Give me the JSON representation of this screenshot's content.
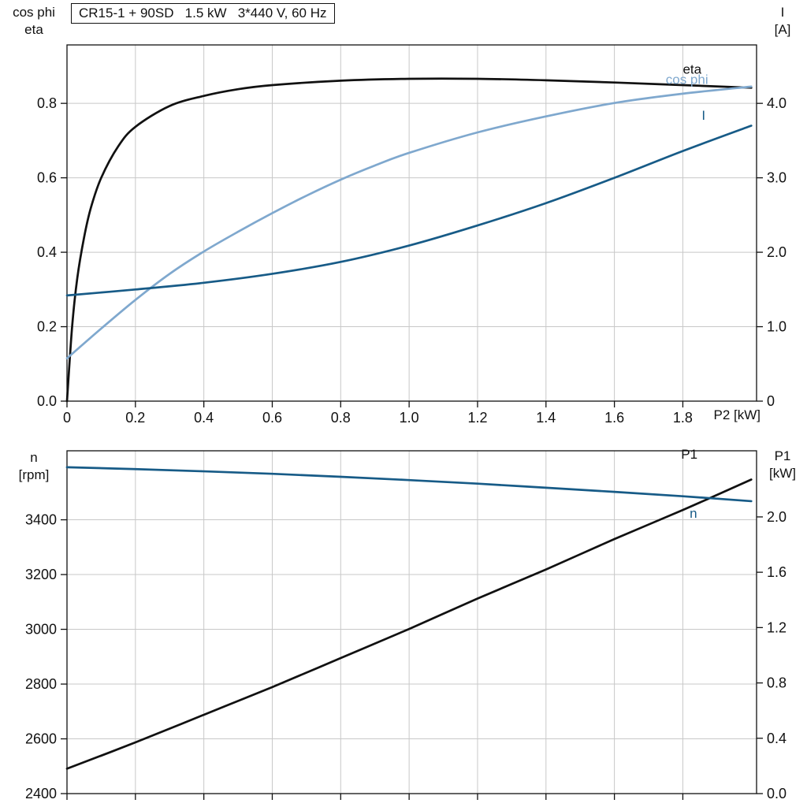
{
  "title_box": "CR15-1 + 90SD   1.5 kW   3*440 V, 60 Hz",
  "colors": {
    "black": "#111111",
    "light_blue": "#7FA8CE",
    "dark_blue": "#175B87",
    "grid": "#C8C8C8",
    "axis": "#111111",
    "text": "#111111"
  },
  "chart_data": [
    {
      "type": "line",
      "id": "top",
      "title": "CR15-1 + 90SD   1.5 kW   3*440 V, 60 Hz",
      "grid": true,
      "legend_position": "none",
      "x_axis": {
        "label": "P2 [kW]",
        "min": 0,
        "max": 2.0155,
        "tick_values": [
          0,
          0.2,
          0.4,
          0.6,
          0.8,
          1.0,
          1.2,
          1.4,
          1.6,
          1.8
        ],
        "tick_labels": [
          "0",
          "0.2",
          "0.4",
          "0.6",
          "0.8",
          "1.0",
          "1.2",
          "1.4",
          "1.6",
          "1.8"
        ]
      },
      "y_left": {
        "label_lines": [
          "cos phi",
          "eta"
        ],
        "min": 0,
        "max": 0.957,
        "tick_values": [
          0,
          0.2,
          0.4,
          0.6,
          0.8
        ],
        "tick_labels": [
          "0.0",
          "0.2",
          "0.4",
          "0.6",
          "0.8"
        ]
      },
      "y_right": {
        "label_lines": [
          "I",
          "[A]"
        ],
        "min": 0,
        "max": 4.785,
        "tick_values": [
          0,
          1.0,
          2.0,
          3.0,
          4.0
        ],
        "tick_labels": [
          "0",
          "1.0",
          "2.0",
          "3.0",
          "4.0"
        ]
      },
      "show_x_tick_labels": true,
      "series": [
        {
          "name": "eta",
          "label": "eta",
          "axis": "left",
          "color": "black",
          "label_at": [
            1.8,
            0.88
          ],
          "x": [
            0,
            0.015,
            0.03,
            0.05,
            0.07,
            0.1,
            0.15,
            0.2,
            0.3,
            0.4,
            0.5,
            0.6,
            0.8,
            1.0,
            1.2,
            1.4,
            1.6,
            1.8,
            2.0
          ],
          "y": [
            0,
            0.2,
            0.33,
            0.44,
            0.52,
            0.6,
            0.685,
            0.737,
            0.793,
            0.82,
            0.838,
            0.849,
            0.861,
            0.866,
            0.866,
            0.862,
            0.856,
            0.849,
            0.842
          ]
        },
        {
          "name": "cos phi",
          "label": "cos phi",
          "axis": "left",
          "color": "light_blue",
          "label_at": [
            1.75,
            0.852
          ],
          "x": [
            0,
            0.1,
            0.2,
            0.3,
            0.4,
            0.5,
            0.6,
            0.7,
            0.8,
            0.9,
            1.0,
            1.2,
            1.4,
            1.6,
            1.8,
            2.0
          ],
          "y": [
            0.115,
            0.195,
            0.272,
            0.342,
            0.402,
            0.455,
            0.505,
            0.552,
            0.595,
            0.633,
            0.667,
            0.722,
            0.765,
            0.801,
            0.826,
            0.845
          ]
        },
        {
          "name": "I",
          "label": "I",
          "axis": "right",
          "color": "dark_blue",
          "label_at": [
            1.855,
            3.78
          ],
          "x": [
            0,
            0.2,
            0.4,
            0.6,
            0.8,
            1.0,
            1.2,
            1.4,
            1.6,
            1.8,
            2.0
          ],
          "y": [
            1.42,
            1.5,
            1.59,
            1.71,
            1.87,
            2.09,
            2.36,
            2.66,
            3.0,
            3.36,
            3.7
          ]
        }
      ]
    },
    {
      "type": "line",
      "id": "bottom",
      "title": "",
      "grid": true,
      "legend_position": "none",
      "x_axis": {
        "label": "",
        "min": 0,
        "max": 2.0155,
        "tick_values": [
          0,
          0.2,
          0.4,
          0.6,
          0.8,
          1.0,
          1.2,
          1.4,
          1.6,
          1.8
        ],
        "tick_labels": [
          "",
          "",
          "",
          "",
          "",
          "",
          "",
          "",
          "",
          ""
        ]
      },
      "y_left": {
        "label_lines": [
          "n",
          "[rpm]"
        ],
        "min": 2400,
        "max": 3652,
        "tick_values": [
          2400,
          2600,
          2800,
          3000,
          3200,
          3400
        ],
        "tick_labels": [
          "2400",
          "2600",
          "2800",
          "3000",
          "3200",
          "3400"
        ]
      },
      "y_right": {
        "label_lines": [
          "P1",
          "[kW]"
        ],
        "min": 0,
        "max": 2.478,
        "tick_values": [
          0,
          0.4,
          0.8,
          1.2,
          1.6,
          2.0
        ],
        "tick_labels": [
          "0.0",
          "0.4",
          "0.8",
          "1.2",
          "1.6",
          "2.0"
        ]
      },
      "show_x_tick_labels": false,
      "series": [
        {
          "name": "P1",
          "label": "P1",
          "axis": "right",
          "color": "black",
          "label_at": [
            1.795,
            2.42
          ],
          "x": [
            0,
            0.2,
            0.4,
            0.6,
            0.8,
            1.0,
            1.2,
            1.4,
            1.6,
            1.8,
            2.0
          ],
          "y": [
            0.18,
            0.37,
            0.57,
            0.77,
            0.98,
            1.19,
            1.41,
            1.62,
            1.84,
            2.05,
            2.27
          ]
        },
        {
          "name": "n",
          "label": "n",
          "axis": "left",
          "color": "dark_blue",
          "label_at": [
            1.82,
            3408
          ],
          "x": [
            0,
            0.2,
            0.4,
            0.6,
            0.8,
            1.0,
            1.2,
            1.4,
            1.6,
            1.8,
            2.0
          ],
          "y": [
            3592,
            3585,
            3577,
            3568,
            3557,
            3545,
            3532,
            3517,
            3502,
            3486,
            3468
          ]
        }
      ]
    }
  ]
}
